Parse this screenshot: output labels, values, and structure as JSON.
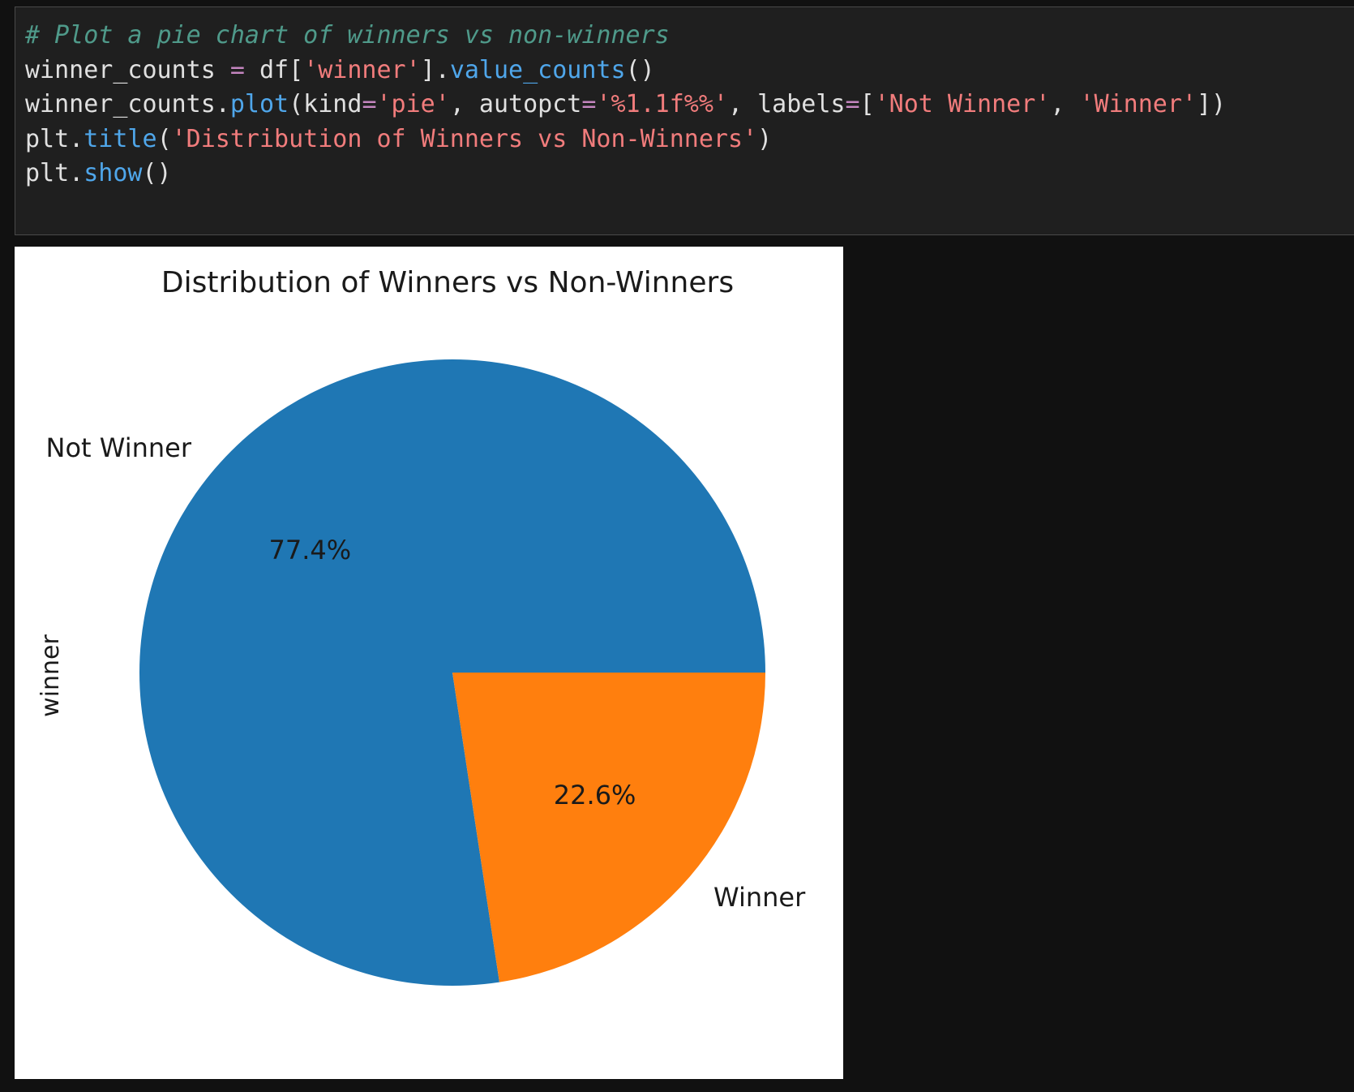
{
  "cell": {
    "code_lines": [
      [
        {
          "t": "# Plot a pie chart of winners vs non-winners",
          "c": "comment"
        }
      ],
      [
        {
          "t": "winner_counts ",
          "c": "plain"
        },
        {
          "t": "=",
          "c": "op"
        },
        {
          "t": " df[",
          "c": "plain"
        },
        {
          "t": "'winner'",
          "c": "str"
        },
        {
          "t": "].",
          "c": "plain"
        },
        {
          "t": "value_counts",
          "c": "fn"
        },
        {
          "t": "()",
          "c": "plain"
        }
      ],
      [
        {
          "t": "winner_counts.",
          "c": "plain"
        },
        {
          "t": "plot",
          "c": "fn"
        },
        {
          "t": "(kind",
          "c": "plain"
        },
        {
          "t": "=",
          "c": "op"
        },
        {
          "t": "'pie'",
          "c": "str"
        },
        {
          "t": ", autopct",
          "c": "plain"
        },
        {
          "t": "=",
          "c": "op"
        },
        {
          "t": "'%1.1f%%'",
          "c": "str"
        },
        {
          "t": ", labels",
          "c": "plain"
        },
        {
          "t": "=",
          "c": "op"
        },
        {
          "t": "[",
          "c": "plain"
        },
        {
          "t": "'Not Winner'",
          "c": "str"
        },
        {
          "t": ", ",
          "c": "plain"
        },
        {
          "t": "'Winner'",
          "c": "str"
        },
        {
          "t": "])",
          "c": "plain"
        }
      ],
      [
        {
          "t": "plt.",
          "c": "plain"
        },
        {
          "t": "title",
          "c": "fn"
        },
        {
          "t": "(",
          "c": "plain"
        },
        {
          "t": "'Distribution of Winners vs Non-Winners'",
          "c": "str"
        },
        {
          "t": ")",
          "c": "plain"
        }
      ],
      [
        {
          "t": "plt.",
          "c": "plain"
        },
        {
          "t": "show",
          "c": "fn"
        },
        {
          "t": "()",
          "c": "plain"
        }
      ]
    ]
  },
  "chart_data": {
    "type": "pie",
    "title": "Distribution of Winners vs Non-Winners",
    "ylabel": "winner",
    "categories": [
      "Not Winner",
      "Winner"
    ],
    "values": [
      77.4,
      22.6
    ],
    "value_labels": [
      "77.4%",
      "22.6%"
    ],
    "colors": [
      "#1f77b4",
      "#ff7f0e"
    ],
    "start_angle_deg": 0,
    "direction": "counterclockwise"
  }
}
